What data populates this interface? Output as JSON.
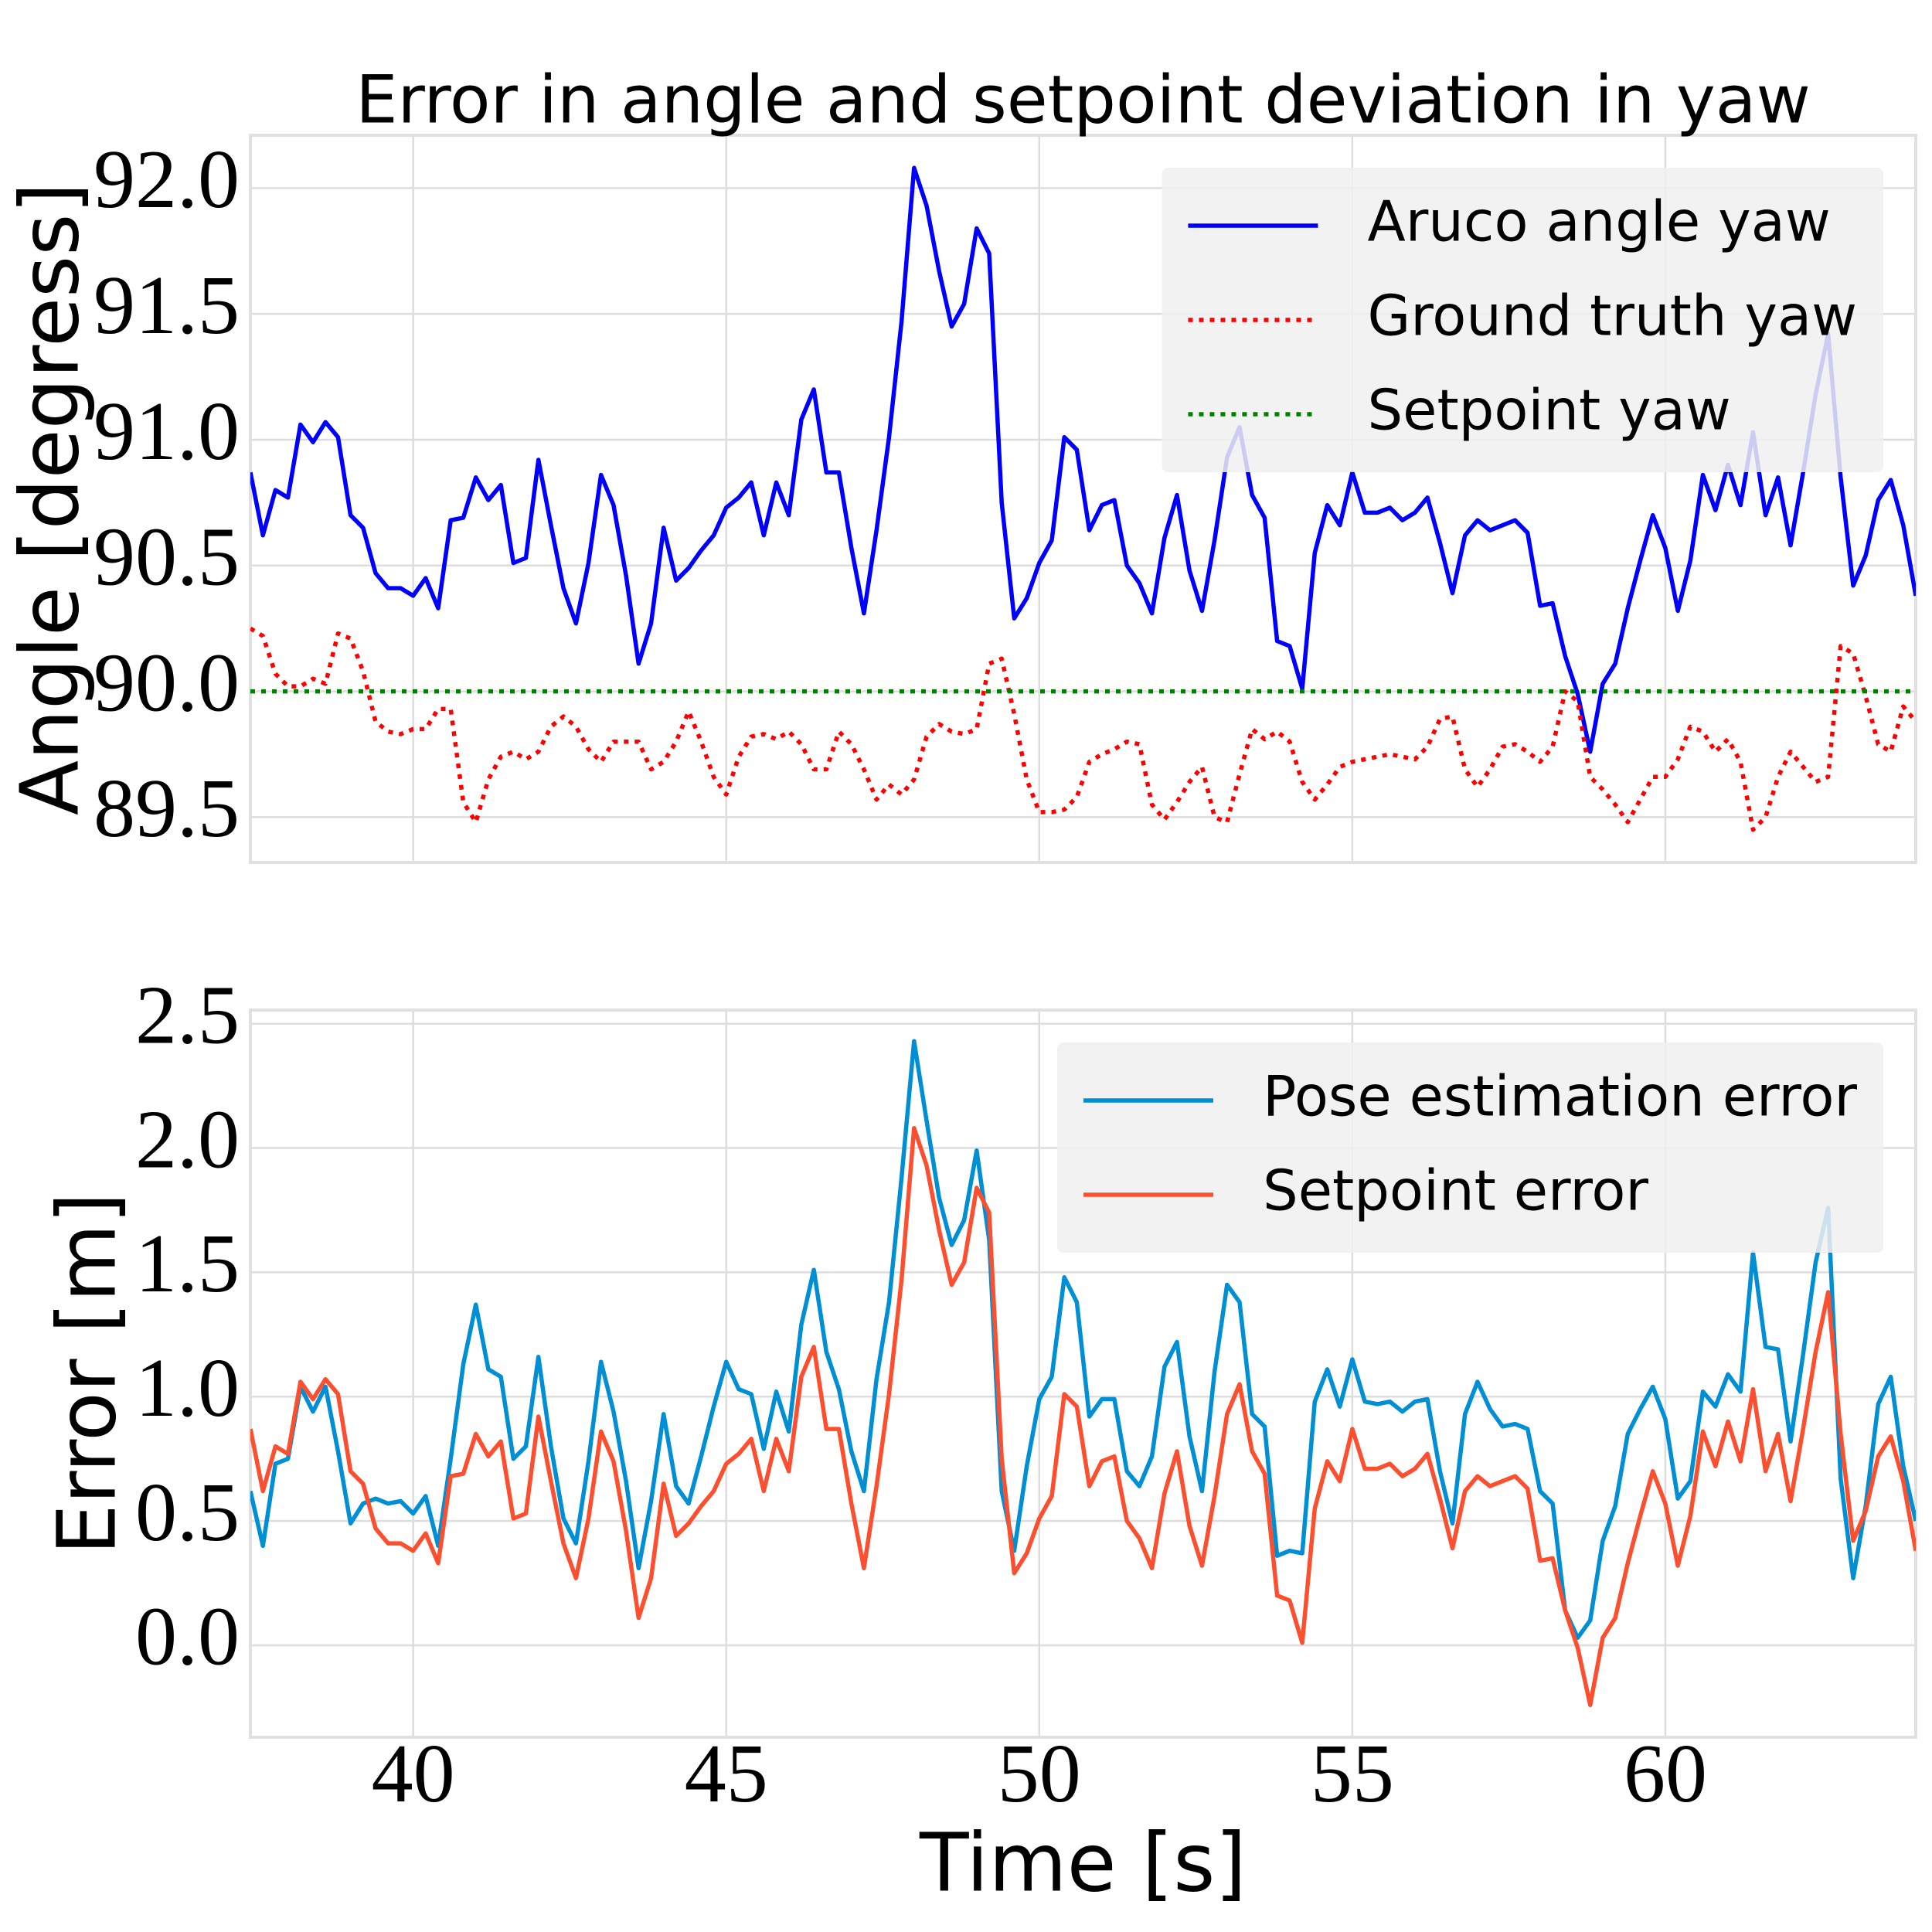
{
  "chart_data": [
    {
      "type": "line",
      "title": "Error in angle and setpoint deviation in yaw",
      "ylabel": "Angle [degress]",
      "x": [
        37.4,
        37.6,
        37.8,
        38,
        38.2,
        38.4,
        38.6,
        38.8,
        39,
        39.2,
        39.4,
        39.6,
        39.8,
        40,
        40.2,
        40.4,
        40.6,
        40.8,
        41,
        41.2,
        41.4,
        41.6,
        41.8,
        42,
        42.2,
        42.4,
        42.6,
        42.8,
        43,
        43.2,
        43.4,
        43.6,
        43.8,
        44,
        44.2,
        44.4,
        44.6,
        44.8,
        45,
        45.2,
        45.4,
        45.6,
        45.8,
        46,
        46.2,
        46.4,
        46.6,
        46.8,
        47,
        47.2,
        47.4,
        47.6,
        47.8,
        48,
        48.2,
        48.4,
        48.6,
        48.8,
        49,
        49.2,
        49.4,
        49.6,
        49.8,
        50,
        50.2,
        50.4,
        50.6,
        50.8,
        51,
        51.2,
        51.4,
        51.6,
        51.8,
        52,
        52.2,
        52.4,
        52.6,
        52.8,
        53,
        53.2,
        53.4,
        53.6,
        53.8,
        54,
        54.2,
        54.4,
        54.6,
        54.8,
        55,
        55.2,
        55.4,
        55.6,
        55.8,
        56,
        56.2,
        56.4,
        56.6,
        56.8,
        57,
        57.2,
        57.4,
        57.6,
        57.8,
        58,
        58.2,
        58.4,
        58.6,
        58.8,
        59,
        59.2,
        59.4,
        59.6,
        59.8,
        60,
        60.2,
        60.4,
        60.6,
        60.8,
        61,
        61.2,
        61.4,
        61.6,
        61.8,
        62,
        62.2,
        62.4,
        62.6,
        62.8,
        63,
        63.2,
        63.4,
        63.6,
        63.8,
        64
      ],
      "series": [
        {
          "name": "Aruco angle yaw",
          "color": "#0000ff",
          "dash": "solid",
          "values": [
            90.87,
            90.62,
            90.8,
            90.77,
            91.06,
            90.99,
            91.07,
            91.01,
            90.7,
            90.65,
            90.47,
            90.41,
            90.41,
            90.38,
            90.45,
            90.33,
            90.68,
            90.69,
            90.85,
            90.76,
            90.82,
            90.51,
            90.53,
            90.92,
            90.66,
            90.41,
            90.27,
            90.51,
            90.86,
            90.74,
            90.46,
            90.11,
            90.27,
            90.65,
            90.44,
            90.49,
            90.56,
            90.62,
            90.73,
            90.77,
            90.83,
            90.62,
            90.83,
            90.7,
            91.08,
            91.2,
            90.87,
            90.87,
            90.57,
            90.31,
            90.64,
            91.01,
            91.47,
            92.08,
            91.93,
            91.67,
            91.45,
            91.54,
            91.84,
            91.74,
            90.75,
            90.29,
            90.37,
            90.51,
            90.6,
            91.01,
            90.96,
            90.64,
            90.74,
            90.76,
            90.5,
            90.43,
            90.31,
            90.61,
            90.78,
            90.48,
            90.32,
            90.6,
            90.93,
            91.05,
            90.78,
            90.69,
            90.2,
            90.18,
            90.01,
            90.55,
            90.74,
            90.66,
            90.87,
            90.71,
            90.71,
            90.73,
            90.68,
            90.71,
            90.77,
            90.59,
            90.39,
            90.62,
            90.68,
            90.64,
            90.66,
            90.68,
            90.63,
            90.34,
            90.35,
            90.14,
            89.99,
            89.76,
            90.03,
            90.11,
            90.33,
            90.52,
            90.7,
            90.57,
            90.32,
            90.52,
            90.86,
            90.72,
            90.9,
            90.74,
            91.03,
            90.7,
            90.85,
            90.58,
            90.87,
            91.18,
            91.42,
            90.85,
            90.42,
            90.54,
            90.76,
            90.84,
            90.66,
            90.38
          ]
        },
        {
          "name": "Ground truth yaw",
          "color": "#ff0000",
          "dash": "dotted",
          "values": [
            90.25,
            90.22,
            90.07,
            90.02,
            90.02,
            90.05,
            90.03,
            90.23,
            90.21,
            90.08,
            89.88,
            89.84,
            89.83,
            89.85,
            89.85,
            89.93,
            89.93,
            89.56,
            89.48,
            89.65,
            89.74,
            89.76,
            89.73,
            89.76,
            89.86,
            89.9,
            89.86,
            89.77,
            89.72,
            89.8,
            89.8,
            89.8,
            89.69,
            89.72,
            89.8,
            89.92,
            89.8,
            89.66,
            89.59,
            89.74,
            89.82,
            89.83,
            89.81,
            89.84,
            89.79,
            89.69,
            89.69,
            89.84,
            89.79,
            89.69,
            89.57,
            89.63,
            89.59,
            89.65,
            89.82,
            89.87,
            89.84,
            89.83,
            89.85,
            90.11,
            90.13,
            89.91,
            89.65,
            89.52,
            89.52,
            89.53,
            89.58,
            89.72,
            89.75,
            89.77,
            89.8,
            89.79,
            89.55,
            89.49,
            89.56,
            89.64,
            89.7,
            89.5,
            89.48,
            89.67,
            89.85,
            89.81,
            89.84,
            89.8,
            89.64,
            89.57,
            89.63,
            89.7,
            89.72,
            89.73,
            89.74,
            89.75,
            89.74,
            89.73,
            89.78,
            89.89,
            89.9,
            89.69,
            89.62,
            89.69,
            89.78,
            89.79,
            89.76,
            89.72,
            89.78,
            90.0,
            89.96,
            89.66,
            89.61,
            89.55,
            89.48,
            89.57,
            89.66,
            89.66,
            89.73,
            89.86,
            89.84,
            89.76,
            89.81,
            89.72,
            89.45,
            89.5,
            89.66,
            89.76,
            89.7,
            89.64,
            89.66,
            90.18,
            90.15,
            89.98,
            89.79,
            89.76,
            89.94,
            89.88
          ]
        },
        {
          "name": "Setpoint yaw",
          "color": "#008000",
          "dash": "dotted",
          "values": [
            90,
            90,
            90,
            90,
            90,
            90,
            90,
            90,
            90,
            90,
            90,
            90,
            90,
            90,
            90,
            90,
            90,
            90,
            90,
            90,
            90,
            90,
            90,
            90,
            90,
            90,
            90,
            90,
            90,
            90,
            90,
            90,
            90,
            90,
            90,
            90,
            90,
            90,
            90,
            90,
            90,
            90,
            90,
            90,
            90,
            90,
            90,
            90,
            90,
            90,
            90,
            90,
            90,
            90,
            90,
            90,
            90,
            90,
            90,
            90,
            90,
            90,
            90,
            90,
            90,
            90,
            90,
            90,
            90,
            90,
            90,
            90,
            90,
            90,
            90,
            90,
            90,
            90,
            90,
            90,
            90,
            90,
            90,
            90,
            90,
            90,
            90,
            90,
            90,
            90,
            90,
            90,
            90,
            90,
            90,
            90,
            90,
            90,
            90,
            90,
            90,
            90,
            90,
            90,
            90,
            90,
            90,
            90,
            90,
            90,
            90,
            90,
            90,
            90,
            90,
            90,
            90,
            90,
            90,
            90,
            90,
            90,
            90,
            90,
            90,
            90,
            90,
            90,
            90,
            90,
            90,
            90,
            90,
            90
          ]
        }
      ],
      "xlim": [
        37.4,
        64.0
      ],
      "xticks": [
        40,
        45,
        50,
        55,
        60
      ],
      "ylim": [
        89.32,
        92.21
      ],
      "yticks": [
        89.5,
        {
          "value": 90,
          "label": "90.0"
        },
        90.5,
        {
          "value": 91,
          "label": "91.0"
        },
        91.5,
        {
          "value": 92,
          "label": "92.0"
        }
      ],
      "grid": true,
      "legend": "upper right"
    },
    {
      "type": "line",
      "xlabel": "Time [s]",
      "ylabel": "Error [m]",
      "x": [
        37.4,
        37.6,
        37.8,
        38,
        38.2,
        38.4,
        38.6,
        38.8,
        39,
        39.2,
        39.4,
        39.6,
        39.8,
        40,
        40.2,
        40.4,
        40.6,
        40.8,
        41,
        41.2,
        41.4,
        41.6,
        41.8,
        42,
        42.2,
        42.4,
        42.6,
        42.8,
        43,
        43.2,
        43.4,
        43.6,
        43.8,
        44,
        44.2,
        44.4,
        44.6,
        44.8,
        45,
        45.2,
        45.4,
        45.6,
        45.8,
        46,
        46.2,
        46.4,
        46.6,
        46.8,
        47,
        47.2,
        47.4,
        47.6,
        47.8,
        48,
        48.2,
        48.4,
        48.6,
        48.8,
        49,
        49.2,
        49.4,
        49.6,
        49.8,
        50,
        50.2,
        50.4,
        50.6,
        50.8,
        51,
        51.2,
        51.4,
        51.6,
        51.8,
        52,
        52.2,
        52.4,
        52.6,
        52.8,
        53,
        53.2,
        53.4,
        53.6,
        53.8,
        54,
        54.2,
        54.4,
        54.6,
        54.8,
        55,
        55.2,
        55.4,
        55.6,
        55.8,
        56,
        56.2,
        56.4,
        56.6,
        56.8,
        57,
        57.2,
        57.4,
        57.6,
        57.8,
        58,
        58.2,
        58.4,
        58.6,
        58.8,
        59,
        59.2,
        59.4,
        59.6,
        59.8,
        60,
        60.2,
        60.4,
        60.6,
        60.8,
        61,
        61.2,
        61.4,
        61.6,
        61.8,
        62,
        62.2,
        62.4,
        62.6,
        62.8,
        63,
        63.2,
        63.4,
        63.6,
        63.8,
        64
      ],
      "series": [
        {
          "name": "Pose estimation error",
          "color": "#008fd5",
          "dash": "solid",
          "values": [
            0.62,
            0.4,
            0.73,
            0.75,
            1.04,
            0.94,
            1.04,
            0.78,
            0.49,
            0.57,
            0.59,
            0.57,
            0.58,
            0.53,
            0.6,
            0.4,
            0.75,
            1.13,
            1.37,
            1.11,
            1.08,
            0.75,
            0.8,
            1.16,
            0.8,
            0.51,
            0.41,
            0.74,
            1.14,
            0.94,
            0.66,
            0.31,
            0.58,
            0.93,
            0.64,
            0.57,
            0.76,
            0.96,
            1.14,
            1.03,
            1.01,
            0.79,
            1.02,
            0.86,
            1.29,
            1.51,
            1.18,
            1.03,
            0.78,
            0.62,
            1.07,
            1.38,
            1.88,
            2.43,
            2.11,
            1.8,
            1.61,
            1.71,
            1.99,
            1.63,
            0.62,
            0.38,
            0.72,
            0.99,
            1.08,
            1.48,
            1.38,
            0.92,
            0.99,
            0.99,
            0.7,
            0.64,
            0.76,
            1.12,
            1.22,
            0.84,
            0.62,
            1.1,
            1.45,
            1.38,
            0.93,
            0.88,
            0.36,
            0.38,
            0.37,
            0.98,
            1.11,
            0.96,
            1.15,
            0.98,
            0.97,
            0.98,
            0.94,
            0.98,
            0.99,
            0.7,
            0.49,
            0.93,
            1.06,
            0.95,
            0.88,
            0.89,
            0.87,
            0.62,
            0.57,
            0.14,
            0.03,
            0.1,
            0.42,
            0.56,
            0.85,
            0.95,
            1.04,
            0.91,
            0.59,
            0.66,
            1.02,
            0.96,
            1.09,
            1.02,
            1.58,
            1.2,
            1.19,
            0.82,
            1.17,
            1.54,
            1.76,
            0.67,
            0.27,
            0.56,
            0.97,
            1.08,
            0.72,
            0.5
          ]
        },
        {
          "name": "Setpoint error",
          "color": "#fc4f30",
          "dash": "solid",
          "values": [
            0.87,
            0.62,
            0.8,
            0.77,
            1.06,
            0.99,
            1.07,
            1.01,
            0.7,
            0.65,
            0.47,
            0.41,
            0.41,
            0.38,
            0.45,
            0.33,
            0.68,
            0.69,
            0.85,
            0.76,
            0.82,
            0.51,
            0.53,
            0.92,
            0.66,
            0.41,
            0.27,
            0.51,
            0.86,
            0.74,
            0.46,
            0.11,
            0.27,
            0.65,
            0.44,
            0.49,
            0.56,
            0.62,
            0.73,
            0.77,
            0.83,
            0.62,
            0.83,
            0.7,
            1.08,
            1.2,
            0.87,
            0.87,
            0.57,
            0.31,
            0.64,
            1.01,
            1.47,
            2.08,
            1.93,
            1.67,
            1.45,
            1.54,
            1.84,
            1.74,
            0.75,
            0.29,
            0.37,
            0.51,
            0.6,
            1.01,
            0.96,
            0.64,
            0.74,
            0.76,
            0.5,
            0.43,
            0.31,
            0.61,
            0.78,
            0.48,
            0.32,
            0.6,
            0.93,
            1.05,
            0.78,
            0.69,
            0.2,
            0.18,
            0.01,
            0.55,
            0.74,
            0.66,
            0.87,
            0.71,
            0.71,
            0.73,
            0.68,
            0.71,
            0.77,
            0.59,
            0.39,
            0.62,
            0.68,
            0.64,
            0.66,
            0.68,
            0.63,
            0.34,
            0.35,
            0.14,
            -0.01,
            -0.24,
            0.03,
            0.11,
            0.33,
            0.52,
            0.7,
            0.57,
            0.32,
            0.52,
            0.86,
            0.72,
            0.9,
            0.74,
            1.03,
            0.7,
            0.85,
            0.58,
            0.87,
            1.18,
            1.42,
            0.85,
            0.42,
            0.54,
            0.76,
            0.84,
            0.66,
            0.38
          ]
        }
      ],
      "xlim": [
        37.4,
        64.0
      ],
      "xticks": [
        40,
        45,
        50,
        55,
        60
      ],
      "ylim": [
        -0.37,
        2.555
      ],
      "yticks": [
        {
          "value": 0,
          "label": "0.0"
        },
        0.5,
        {
          "value": 1,
          "label": "1.0"
        },
        1.5,
        {
          "value": 2,
          "label": "2.0"
        },
        2.5
      ],
      "grid": true,
      "legend": "upper right"
    }
  ]
}
